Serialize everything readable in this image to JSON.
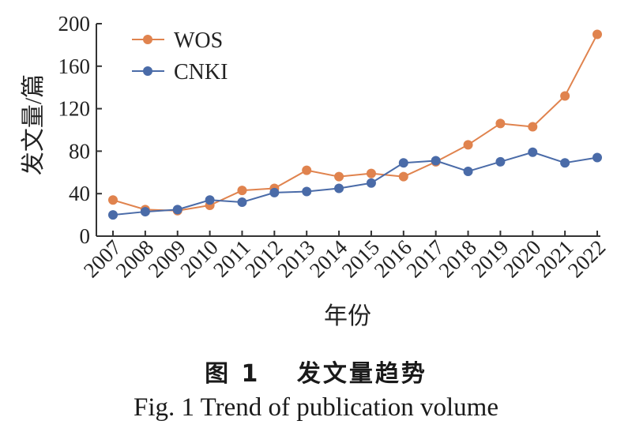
{
  "chart_data": {
    "type": "line",
    "title": "",
    "xlabel": "年份",
    "ylabel": "发文量/篇",
    "categories": [
      "2007",
      "2008",
      "2009",
      "2010",
      "2011",
      "2012",
      "2013",
      "2014",
      "2015",
      "2016",
      "2017",
      "2018",
      "2019",
      "2020",
      "2021",
      "2022"
    ],
    "ylim": [
      0,
      200
    ],
    "yticks": [
      0,
      40,
      80,
      120,
      160,
      200
    ],
    "grid": false,
    "legend_position": "top-left",
    "series": [
      {
        "name": "WOS",
        "color": "#e0834e",
        "values": [
          34,
          25,
          24,
          29,
          43,
          45,
          62,
          56,
          59,
          56,
          70,
          86,
          106,
          103,
          132,
          190
        ]
      },
      {
        "name": "CNKI",
        "color": "#4a6ba8",
        "values": [
          20,
          23,
          25,
          34,
          32,
          41,
          42,
          45,
          50,
          69,
          71,
          61,
          70,
          79,
          69,
          74
        ]
      }
    ]
  },
  "caption": {
    "cn": "图 1 　发文量趋势",
    "en": "Fig. 1 Trend of publication volume"
  }
}
